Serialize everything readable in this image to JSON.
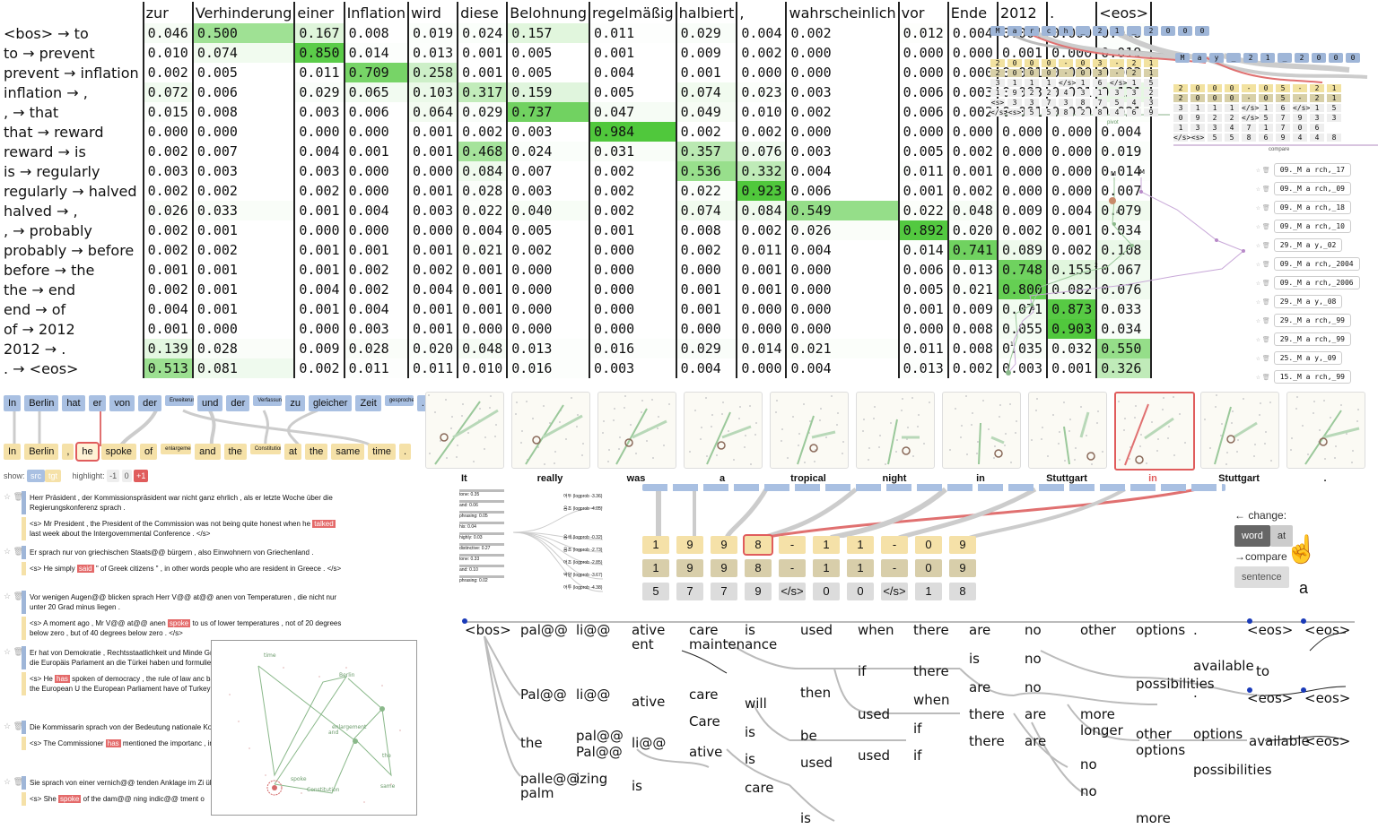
{
  "attention": {
    "columns": [
      "zur",
      "Verhinderung",
      "einer",
      "Inflation",
      "wird",
      "diese",
      "Belohnung",
      "regelmäßig",
      "halbiert",
      ",",
      "wahrscheinlich",
      "vor",
      "Ende",
      "2012",
      ".",
      "<eos>"
    ],
    "rows": [
      {
        "label": "<bos> → to",
        "values": [
          "0.046",
          "0.500",
          "0.167",
          "0.008",
          "0.019",
          "0.024",
          "0.157",
          "0.011",
          "0.029",
          "0.004",
          "0.002",
          "0.012",
          "0.004",
          "0.001",
          "0.000",
          "0.018"
        ]
      },
      {
        "label": "to → prevent",
        "values": [
          "0.010",
          "0.074",
          "0.850",
          "0.014",
          "0.013",
          "0.001",
          "0.005",
          "0.001",
          "0.009",
          "0.002",
          "0.000",
          "0.000",
          "0.000",
          "0.001",
          "0.000",
          "0.019"
        ]
      },
      {
        "label": "prevent → inflation",
        "values": [
          "0.002",
          "0.005",
          "0.011",
          "0.709",
          "0.258",
          "0.001",
          "0.005",
          "0.004",
          "0.001",
          "0.000",
          "0.000",
          "0.000",
          "0.000",
          "0.001",
          "0.000",
          "0.003"
        ]
      },
      {
        "label": "inflation → ,",
        "values": [
          "0.072",
          "0.006",
          "0.029",
          "0.065",
          "0.103",
          "0.317",
          "0.159",
          "0.005",
          "0.074",
          "0.023",
          "0.003",
          "0.006",
          "0.003",
          "0.003",
          "0.001",
          "0.131"
        ]
      },
      {
        "label": ", → that",
        "values": [
          "0.015",
          "0.008",
          "0.003",
          "0.006",
          "0.064",
          "0.029",
          "0.737",
          "0.047",
          "0.049",
          "0.010",
          "0.002",
          "0.006",
          "0.002",
          "0.001",
          "0.000",
          "0.021"
        ]
      },
      {
        "label": "that → reward",
        "values": [
          "0.000",
          "0.000",
          "0.000",
          "0.000",
          "0.001",
          "0.002",
          "0.003",
          "0.984",
          "0.002",
          "0.002",
          "0.000",
          "0.000",
          "0.000",
          "0.000",
          "0.000",
          "0.004"
        ]
      },
      {
        "label": "reward → is",
        "values": [
          "0.002",
          "0.007",
          "0.004",
          "0.001",
          "0.001",
          "0.468",
          "0.024",
          "0.031",
          "0.357",
          "0.076",
          "0.003",
          "0.005",
          "0.002",
          "0.000",
          "0.000",
          "0.019"
        ]
      },
      {
        "label": "is → regularly",
        "values": [
          "0.003",
          "0.003",
          "0.003",
          "0.000",
          "0.000",
          "0.084",
          "0.007",
          "0.002",
          "0.536",
          "0.332",
          "0.004",
          "0.011",
          "0.001",
          "0.000",
          "0.000",
          "0.014"
        ]
      },
      {
        "label": "regularly → halved",
        "values": [
          "0.002",
          "0.002",
          "0.002",
          "0.000",
          "0.001",
          "0.028",
          "0.003",
          "0.002",
          "0.022",
          "0.923",
          "0.006",
          "0.001",
          "0.002",
          "0.000",
          "0.000",
          "0.007"
        ]
      },
      {
        "label": "halved → ,",
        "values": [
          "0.026",
          "0.033",
          "0.001",
          "0.004",
          "0.003",
          "0.022",
          "0.040",
          "0.002",
          "0.074",
          "0.084",
          "0.549",
          "0.022",
          "0.048",
          "0.009",
          "0.004",
          "0.079"
        ]
      },
      {
        "label": ", → probably",
        "values": [
          "0.002",
          "0.001",
          "0.000",
          "0.000",
          "0.000",
          "0.004",
          "0.005",
          "0.001",
          "0.008",
          "0.002",
          "0.026",
          "0.892",
          "0.020",
          "0.002",
          "0.001",
          "0.034"
        ]
      },
      {
        "label": "probably → before",
        "values": [
          "0.002",
          "0.002",
          "0.001",
          "0.001",
          "0.001",
          "0.021",
          "0.002",
          "0.000",
          "0.002",
          "0.011",
          "0.004",
          "0.014",
          "0.741",
          "0.089",
          "0.002",
          "0.108"
        ]
      },
      {
        "label": "before → the",
        "values": [
          "0.001",
          "0.001",
          "0.001",
          "0.002",
          "0.002",
          "0.001",
          "0.000",
          "0.000",
          "0.000",
          "0.001",
          "0.000",
          "0.006",
          "0.013",
          "0.748",
          "0.155",
          "0.067"
        ]
      },
      {
        "label": "the → end",
        "values": [
          "0.002",
          "0.001",
          "0.004",
          "0.002",
          "0.004",
          "0.001",
          "0.000",
          "0.000",
          "0.001",
          "0.001",
          "0.000",
          "0.005",
          "0.021",
          "0.800",
          "0.082",
          "0.076"
        ]
      },
      {
        "label": "end → of",
        "values": [
          "0.004",
          "0.001",
          "0.001",
          "0.004",
          "0.001",
          "0.001",
          "0.000",
          "0.000",
          "0.001",
          "0.000",
          "0.000",
          "0.001",
          "0.009",
          "0.071",
          "0.873",
          "0.033"
        ]
      },
      {
        "label": "of → 2012",
        "values": [
          "0.001",
          "0.000",
          "0.000",
          "0.003",
          "0.001",
          "0.000",
          "0.000",
          "0.000",
          "0.000",
          "0.000",
          "0.000",
          "0.000",
          "0.008",
          "0.055",
          "0.903",
          "0.034"
        ]
      },
      {
        "label": "2012 → .",
        "values": [
          "0.139",
          "0.028",
          "0.009",
          "0.028",
          "0.020",
          "0.048",
          "0.013",
          "0.016",
          "0.029",
          "0.014",
          "0.021",
          "0.011",
          "0.008",
          "0.035",
          "0.032",
          "0.550"
        ]
      },
      {
        "label": ". → <eos>",
        "values": [
          "0.513",
          "0.081",
          "0.002",
          "0.011",
          "0.011",
          "0.010",
          "0.016",
          "0.003",
          "0.004",
          "0.000",
          "0.004",
          "0.013",
          "0.002",
          "0.003",
          "0.001",
          "0.326"
        ]
      }
    ]
  },
  "top_right": {
    "header1": [
      "M",
      "a",
      "r",
      "c",
      "h",
      "_",
      "2",
      "1",
      "_",
      "2",
      "0",
      "0",
      "0"
    ],
    "header2": [
      "M",
      "a",
      "y",
      "_",
      "2",
      "1",
      "_",
      "2",
      "0",
      "0",
      "0"
    ],
    "pivot_label": "pivot",
    "compare_label": "compare",
    "grid1": [
      [
        "2",
        "0",
        "0",
        "0",
        "-",
        "0",
        "3",
        "-",
        "2",
        "1"
      ],
      [
        "2",
        "0",
        "0",
        "0",
        "-",
        "0",
        "3",
        "-",
        "2",
        "1"
      ],
      [
        "3",
        "1",
        "1",
        "1",
        "</s>",
        "1",
        "6",
        "</s>",
        "1",
        "5"
      ],
      [
        "1",
        "9",
        "2",
        "2",
        "4",
        "3",
        "1",
        "3",
        "3",
        "2"
      ],
      [
        "<s>",
        "3",
        "3",
        "7",
        "3",
        "8",
        "7",
        "5",
        "4",
        "3"
      ],
      [
        "</s>",
        "<s>",
        "5",
        "5",
        "8",
        "2",
        "8",
        "4",
        "6",
        "9"
      ]
    ],
    "grid2": [
      [
        "2",
        "0",
        "0",
        "0",
        "-",
        "0",
        "5",
        "-",
        "2",
        "1"
      ],
      [
        "2",
        "0",
        "0",
        "0",
        "-",
        "0",
        "5",
        "-",
        "2",
        "1"
      ],
      [
        "3",
        "1",
        "1",
        "1",
        "</s>",
        "1",
        "6",
        "</s>",
        "1",
        "5"
      ],
      [
        "0",
        "9",
        "2",
        "2",
        "</s>",
        "5",
        "7",
        "9",
        "3",
        "3"
      ],
      [
        "1",
        "3",
        "3",
        "4",
        "7",
        "1",
        "7",
        "0",
        "6"
      ],
      [
        "</s>",
        "<s>",
        "5",
        "5",
        "8",
        "6",
        "9",
        "4",
        "4",
        "8"
      ]
    ]
  },
  "scatter_list": [
    "09._M a rch,_17",
    "09._M a rch,_09",
    "09._M a rch,_18",
    "09._M a rch,_10",
    "29._M a y,_02",
    "09._M a rch,_2004",
    "09._M a rch,_2006",
    "29._M a y,_08",
    "29._M a rch,_99",
    "29._M a rch,_99",
    "25._M a y,_09",
    "15._M a rch,_99"
  ],
  "scatter_labels": {
    "m1": "M",
    "m2": "M",
    "a": "a",
    "n2": "2",
    "n5": "5",
    "n1": "1"
  },
  "sentence": {
    "src": [
      "In",
      "Berlin",
      "hat",
      "er",
      "von",
      "der",
      "Erweiterung",
      "und",
      "der",
      "Verfassung",
      "zu",
      "gleicher",
      "Zeit",
      "gesprochen",
      "."
    ],
    "tgt": [
      "In",
      "Berlin",
      ",",
      "he",
      "spoke",
      "of",
      "enlargement",
      "and",
      "the",
      "Constitution",
      "at",
      "the",
      "same",
      "time",
      "."
    ]
  },
  "show_controls": {
    "show_label": "show:",
    "btn1": "src",
    "btn2": "tgt",
    "highlight_label": "highlight:",
    "h1": "-1",
    "h2": "0",
    "h3": "+1"
  },
  "examples": [
    {
      "src": "Herr Präsident , der Kommissionspräsident war nicht ganz ehrlich , als er letzte Woche über die Regierungskonferenz sprach .",
      "pre": "<s> Mr President , the President of the Commission was not being quite honest when he ",
      "hl": "talked",
      "post": " last week about the Intergovernmental Conference . </s>"
    },
    {
      "src": "Er sprach nur von griechischen Staats@@ bürgern , also Einwohnern von Griechenland .",
      "pre": "<s> He simply ",
      "hl": "said",
      "post": " &quot; of Greek citizens &quot; , in other words people who are resident in Greece . </s>"
    },
    {
      "src": "Vor wenigen Augen@@ blicken sprach Herr V@@ at@@ anen von Temperaturen , die nicht nur unter 20 Grad minus liegen .",
      "pre": "<s> A moment ago , Mr V@@ at@@ anen ",
      "hl": "spoke",
      "post": " to us of lower temperatures , not of 20 degrees below zero , but of 40 degrees below zero . </s>"
    },
    {
      "src": "Er hat von Demokratie , Rechtsstaatlichkeit und Minde Grund@@ elementen der Erwartungen , die die Europäis Parlament an die Türkei haben und formulieren .",
      "pre": "<s> He ",
      "hl": "has",
      "post": " spoken of democracy , the rule of law anc basic elements in the expectations which the European U the European Parliament have of Turkey and which they"
    },
    {
      "src": "Die Kommissarin sprach von der Bedeutung nationale Kommunikations@@ politik .",
      "pre": "<s> The Commissioner ",
      "hl": "has",
      "post": " mentioned the importanc , in its communication policy . </s>"
    },
    {
      "src": "Sie sprach von einer vernich@@ tenden Anklage im Zi über@@ prü@@ fungen .",
      "pre": "<s> She ",
      "hl": "spoke",
      "post": " of the dam@@ ning indic@@ tment o"
    }
  ],
  "overlay_labels": {
    "time": "time",
    "berlin": "Berlin",
    "spoke": "spoke",
    "constitution": "Constitution",
    "enlargement": "enlargement",
    "and": "and",
    "the": "the",
    "same": "same"
  },
  "thumb_words": [
    "It",
    "really",
    "was",
    "a",
    "tropical",
    "night",
    "in",
    "Stuttgart",
    "in",
    "Stuttgart",
    "."
  ],
  "prob_items": [
    {
      "label": "tone: 0.35"
    },
    {
      "label": "and: 0.06"
    },
    {
      "label": "phrasing: 0.05"
    },
    {
      "label": "his: 0.04"
    },
    {
      "label": "highly: 0.03"
    },
    {
      "label": "distinctive: 0.27"
    },
    {
      "label": "tone: 0.33"
    },
    {
      "label": "and: 0.10"
    },
    {
      "label": "phrasing: 0.02"
    }
  ],
  "logprob_items": [
    "어두 (logprob -3.36)",
    "음조 (logprob -4.05)",
    "음색 (logprob -0.32)",
    "음조 (logprob -2.73)",
    "어조 (logprob -2.85)",
    "억양 (logprob -3.67)",
    "어투 (logprob -4.38)"
  ],
  "digit_rows": [
    [
      "1",
      "9",
      "9",
      "8",
      "-",
      "1",
      "1",
      "-",
      "0",
      "9"
    ],
    [
      "1",
      "9",
      "9",
      "8",
      "-",
      "1",
      "1",
      "-",
      "0",
      "9"
    ],
    [
      "5",
      "7",
      "7",
      "9",
      "</s>",
      "0",
      "0",
      "</s>",
      "1",
      "8"
    ]
  ],
  "change_panel": {
    "change_label": "change:",
    "word_btn": "word",
    "attn_btn": "at",
    "compare_label": "compare",
    "sentence_btn": "sentence",
    "caption": "a"
  },
  "beam_tree": {
    "row0": [
      "<bos>",
      "pal@@",
      "li@@",
      "ative",
      "care",
      "is",
      "used",
      "when",
      "there",
      "are",
      "no",
      "other",
      "options",
      ".",
      "<eos>",
      "<eos>"
    ],
    "extra": [
      "ent",
      "maintenance",
      "if",
      "there",
      "is",
      "no",
      "are",
      "no",
      "available",
      "to",
      "Pal@@",
      "li@@",
      "ative",
      "care",
      "will",
      "then",
      "when",
      "used",
      "there",
      "are",
      "more",
      "longer",
      "possibilities",
      ".",
      "<eos>",
      "<eos>",
      "Care",
      "is",
      "be",
      "if",
      "there",
      "are",
      "other",
      "options",
      "options",
      "available",
      "<eos>",
      "the",
      "pal@@",
      "Pal@@",
      "li@@",
      "ative",
      "is",
      "used",
      "used",
      "if",
      "no",
      "possibilities",
      "palle@@",
      "izing",
      "palm",
      "is",
      "care",
      "no",
      "more",
      "is"
    ]
  }
}
